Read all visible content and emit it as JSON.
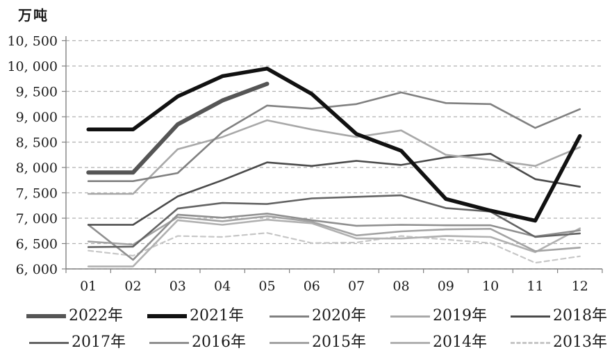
{
  "chart_data": {
    "type": "line",
    "unit_label": "万吨",
    "categories": [
      "01",
      "02",
      "03",
      "04",
      "05",
      "06",
      "07",
      "08",
      "09",
      "10",
      "11",
      "12"
    ],
    "y_tick_labels": [
      "6, 000",
      "6, 500",
      "7, 000",
      "7, 500",
      "8, 000",
      "8, 500",
      "9, 000",
      "9, 500",
      "10, 000",
      "10, 500"
    ],
    "y_tick_values": [
      6000,
      6500,
      7000,
      7500,
      8000,
      8500,
      9000,
      9500,
      10000,
      10500
    ],
    "ylim": [
      6000,
      10500
    ],
    "grid": "horizontal-dashed",
    "legend_position": "bottom-two-rows",
    "axis_color": "#808080",
    "grid_color": "#b0b0b0",
    "series": [
      {
        "name": "2022年",
        "color": "#555555",
        "width": 6,
        "dash": "",
        "values": [
          7900,
          7900,
          8850,
          9320,
          9650,
          null,
          null,
          null,
          null,
          null,
          null,
          null
        ]
      },
      {
        "name": "2021年",
        "color": "#111111",
        "width": 5.5,
        "dash": "",
        "values": [
          8750,
          8750,
          9400,
          9800,
          9950,
          9450,
          8660,
          8330,
          7380,
          7150,
          6950,
          8620
        ]
      },
      {
        "name": "2020年",
        "color": "#808080",
        "width": 2.6,
        "dash": "",
        "values": [
          7730,
          7730,
          7890,
          8700,
          9220,
          9160,
          9250,
          9480,
          9270,
          9250,
          8780,
          9150
        ]
      },
      {
        "name": "2019年",
        "color": "#a8a8a8",
        "width": 2.6,
        "dash": "",
        "values": [
          7480,
          7480,
          8360,
          8600,
          8930,
          8750,
          8600,
          8730,
          8250,
          8150,
          8030,
          8400
        ]
      },
      {
        "name": "2018年",
        "color": "#4a4a4a",
        "width": 2.6,
        "dash": "",
        "values": [
          6870,
          6870,
          7430,
          7750,
          8100,
          8030,
          8130,
          8050,
          8200,
          8270,
          7770,
          7620
        ]
      },
      {
        "name": "2017年",
        "color": "#636363",
        "width": 2.6,
        "dash": "",
        "values": [
          6430,
          6440,
          7190,
          7300,
          7280,
          7390,
          7420,
          7450,
          7200,
          7130,
          6630,
          6700
        ]
      },
      {
        "name": "2016年",
        "color": "#8f8f8f",
        "width": 2.6,
        "dash": "",
        "values": [
          6870,
          6180,
          7070,
          7010,
          7090,
          6960,
          6850,
          6870,
          6860,
          6860,
          6640,
          6760
        ]
      },
      {
        "name": "2015年",
        "color": "#a3a3a3",
        "width": 2.6,
        "dash": "",
        "values": [
          6540,
          6480,
          7020,
          6940,
          7040,
          6930,
          6660,
          6740,
          6780,
          6790,
          6350,
          6420
        ]
      },
      {
        "name": "2014年",
        "color": "#b0b0b0",
        "width": 2.6,
        "dash": "",
        "values": [
          6050,
          6050,
          6960,
          6870,
          6970,
          6900,
          6600,
          6600,
          6650,
          6630,
          6330,
          6800
        ]
      },
      {
        "name": "2013年",
        "color": "#c6c6c6",
        "width": 2.2,
        "dash": "7 5",
        "values": [
          6360,
          6260,
          6650,
          6630,
          6710,
          6510,
          6520,
          6650,
          6580,
          6510,
          6120,
          6250
        ]
      }
    ],
    "legend_rows": [
      [
        "2022年",
        "2021年",
        "2020年",
        "2019年",
        "2018年"
      ],
      [
        "2017年",
        "2016年",
        "2015年",
        "2014年",
        "2013年"
      ]
    ]
  }
}
